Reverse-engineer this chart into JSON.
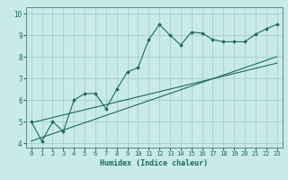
{
  "xlabel": "Humidex (Indice chaleur)",
  "bg_color": "#c8ebe8",
  "grid_color": "#a8ccc8",
  "line_color": "#1a6b5a",
  "spine_color": "#5a8a80",
  "x_data": [
    0,
    1,
    2,
    3,
    4,
    5,
    6,
    7,
    8,
    9,
    10,
    11,
    12,
    13,
    14,
    15,
    16,
    17,
    18,
    19,
    20,
    21,
    22,
    23
  ],
  "y_main": [
    5.0,
    4.1,
    5.0,
    4.55,
    6.0,
    6.3,
    6.3,
    5.6,
    6.5,
    7.3,
    7.5,
    8.8,
    9.5,
    9.0,
    8.55,
    9.15,
    9.1,
    8.8,
    8.7,
    8.7,
    8.7,
    9.05,
    9.3,
    9.5
  ],
  "y_line1": [
    4.95,
    5.07,
    5.19,
    5.31,
    5.43,
    5.55,
    5.67,
    5.79,
    5.91,
    6.03,
    6.15,
    6.27,
    6.39,
    6.51,
    6.63,
    6.75,
    6.87,
    6.99,
    7.11,
    7.23,
    7.35,
    7.47,
    7.59,
    7.71
  ],
  "y_line2": [
    4.1,
    4.27,
    4.44,
    4.61,
    4.78,
    4.95,
    5.12,
    5.29,
    5.46,
    5.63,
    5.8,
    5.97,
    6.14,
    6.31,
    6.48,
    6.65,
    6.82,
    6.99,
    7.16,
    7.33,
    7.5,
    7.67,
    7.84,
    8.01
  ],
  "xlim": [
    -0.5,
    23.5
  ],
  "ylim": [
    3.8,
    10.3
  ],
  "yticks": [
    4,
    5,
    6,
    7,
    8,
    9,
    10
  ],
  "xticks": [
    0,
    1,
    2,
    3,
    4,
    5,
    6,
    7,
    8,
    9,
    10,
    11,
    12,
    13,
    14,
    15,
    16,
    17,
    18,
    19,
    20,
    21,
    22,
    23
  ],
  "xlabel_fontsize": 6,
  "tick_fontsize": 5,
  "linewidth": 0.8,
  "markersize": 2.0
}
